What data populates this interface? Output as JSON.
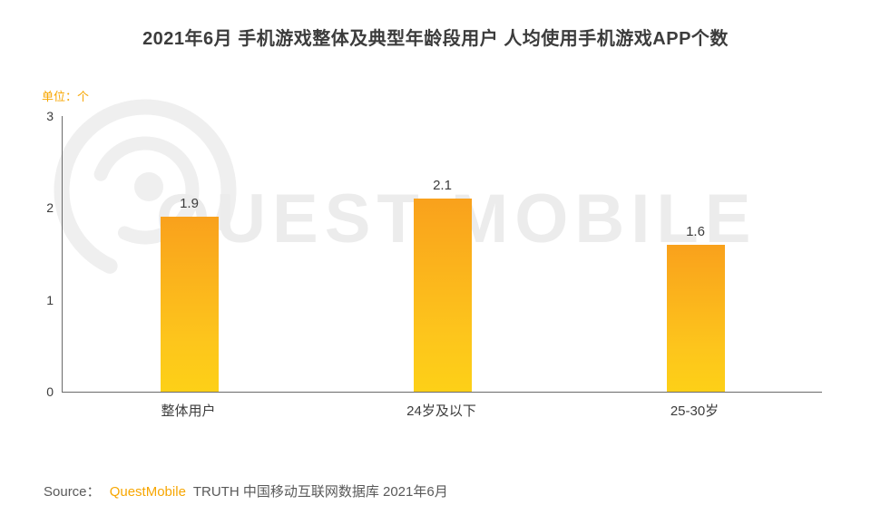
{
  "title": "2021年6月 手机游戏整体及典型年龄段用户 人均使用手机游戏APP个数",
  "unit_label": "单位：个",
  "watermark": "QUEST MOBILE",
  "source": {
    "prefix": "Source：",
    "brand": "QuestMobile",
    "rest": "TRUTH 中国移动互联网数据库 2021年6月"
  },
  "colors": {
    "bar_gradient_top": "#F9A11C",
    "bar_gradient_bottom": "#FDD017",
    "accent_orange": "#F7A600",
    "axis": "#6B6B6B",
    "text": "#3C3C3C",
    "watermark_gray": "#ECECEC"
  },
  "chart_data": {
    "type": "bar",
    "categories": [
      "整体用户",
      "24岁及以下",
      "25-30岁"
    ],
    "values": [
      1.9,
      2.1,
      1.6
    ],
    "title": "2021年6月 手机游戏整体及典型年龄段用户 人均使用手机游戏APP个数",
    "xlabel": "",
    "ylabel": "单位：个",
    "ylim": [
      0,
      3
    ],
    "yticks": [
      0,
      1,
      2,
      3
    ],
    "grid": false,
    "legend": "none"
  }
}
